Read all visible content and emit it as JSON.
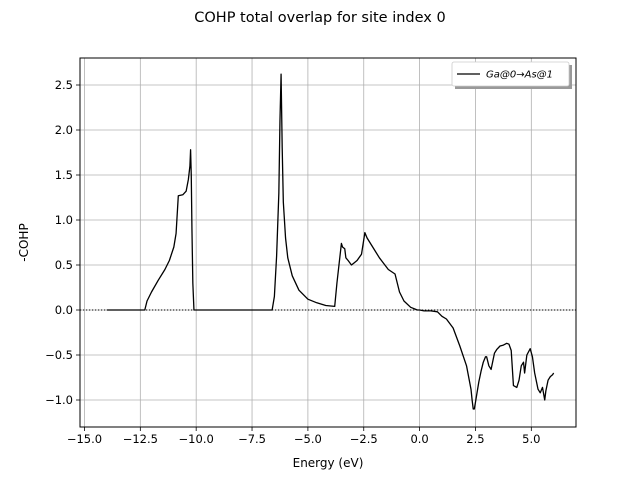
{
  "figure": {
    "title": "COHP total overlap for site index 0"
  },
  "chart_data": {
    "type": "line",
    "title": "COHP total overlap for site index 0",
    "xlabel": "Energy (eV)",
    "ylabel": "-COHP",
    "xlim": [
      -15.2,
      7.0
    ],
    "ylim": [
      -1.3,
      2.8
    ],
    "xticks": [
      -15.0,
      -12.5,
      -10.0,
      -7.5,
      -5.0,
      -2.5,
      0.0,
      2.5,
      5.0
    ],
    "xtick_labels": [
      "−15.0",
      "−12.5",
      "−10.0",
      "−7.5",
      "−5.0",
      "−2.5",
      "0.0",
      "2.5",
      "5.0"
    ],
    "yticks": [
      -1.0,
      -0.5,
      0.0,
      0.5,
      1.0,
      1.5,
      2.0,
      2.5
    ],
    "ytick_labels": [
      "−1.0",
      "−0.5",
      "0.0",
      "0.5",
      "1.0",
      "1.5",
      "2.0",
      "2.5"
    ],
    "grid": true,
    "zero_line": {
      "y": 0,
      "style": "dotted",
      "color": "#000000"
    },
    "legend": {
      "placement": "top-right",
      "shadow": true
    },
    "series": [
      {
        "name": "Ga@0→As@1",
        "color": "#000000",
        "x": [
          -14.0,
          -12.8,
          -12.3,
          -12.2,
          -12.0,
          -11.7,
          -11.4,
          -11.2,
          -11.0,
          -10.9,
          -10.8,
          -10.6,
          -10.45,
          -10.35,
          -10.28,
          -10.25,
          -10.22,
          -10.19,
          -10.15,
          -10.1,
          -9.5,
          -8.0,
          -6.6,
          -6.5,
          -6.4,
          -6.3,
          -6.25,
          -6.2,
          -6.15,
          -6.1,
          -6.0,
          -5.9,
          -5.7,
          -5.4,
          -5.0,
          -4.6,
          -4.2,
          -3.8,
          -3.7,
          -3.6,
          -3.5,
          -3.45,
          -3.35,
          -3.3,
          -3.2,
          -3.05,
          -2.95,
          -2.8,
          -2.6,
          -2.45,
          -2.35,
          -2.1,
          -1.8,
          -1.4,
          -1.1,
          -1.0,
          -0.9,
          -0.7,
          -0.4,
          -0.1,
          0.0,
          0.2,
          0.5,
          0.8,
          1.0,
          1.2,
          1.5,
          1.8,
          2.1,
          2.3,
          2.35,
          2.4,
          2.45,
          2.55,
          2.65,
          2.75,
          2.85,
          2.95,
          3.0,
          3.1,
          3.2,
          3.35,
          3.45,
          3.6,
          3.75,
          3.9,
          4.0,
          4.1,
          4.2,
          4.35,
          4.45,
          4.55,
          4.65,
          4.7,
          4.8,
          4.95,
          5.05,
          5.15,
          5.3,
          5.4,
          5.5,
          5.6,
          5.65,
          5.75,
          5.85,
          5.95,
          6.0
        ],
        "y": [
          0.0,
          0.0,
          0.0,
          0.1,
          0.2,
          0.33,
          0.45,
          0.55,
          0.7,
          0.85,
          1.27,
          1.28,
          1.32,
          1.45,
          1.6,
          1.78,
          1.5,
          0.9,
          0.3,
          0.0,
          0.0,
          0.0,
          0.0,
          0.15,
          0.6,
          1.3,
          2.1,
          2.62,
          1.8,
          1.2,
          0.8,
          0.58,
          0.38,
          0.22,
          0.12,
          0.08,
          0.05,
          0.04,
          0.3,
          0.52,
          0.74,
          0.7,
          0.68,
          0.58,
          0.55,
          0.5,
          0.52,
          0.55,
          0.62,
          0.86,
          0.8,
          0.7,
          0.58,
          0.45,
          0.4,
          0.3,
          0.2,
          0.1,
          0.03,
          0.0,
          0.0,
          -0.01,
          -0.01,
          -0.02,
          -0.07,
          -0.1,
          -0.2,
          -0.4,
          -0.62,
          -0.88,
          -1.0,
          -1.1,
          -1.1,
          -0.95,
          -0.8,
          -0.68,
          -0.58,
          -0.52,
          -0.52,
          -0.62,
          -0.66,
          -0.48,
          -0.44,
          -0.4,
          -0.39,
          -0.37,
          -0.38,
          -0.45,
          -0.84,
          -0.86,
          -0.78,
          -0.62,
          -0.58,
          -0.7,
          -0.5,
          -0.43,
          -0.52,
          -0.7,
          -0.88,
          -0.92,
          -0.86,
          -1.0,
          -0.9,
          -0.78,
          -0.74,
          -0.72,
          -0.7
        ]
      }
    ]
  }
}
